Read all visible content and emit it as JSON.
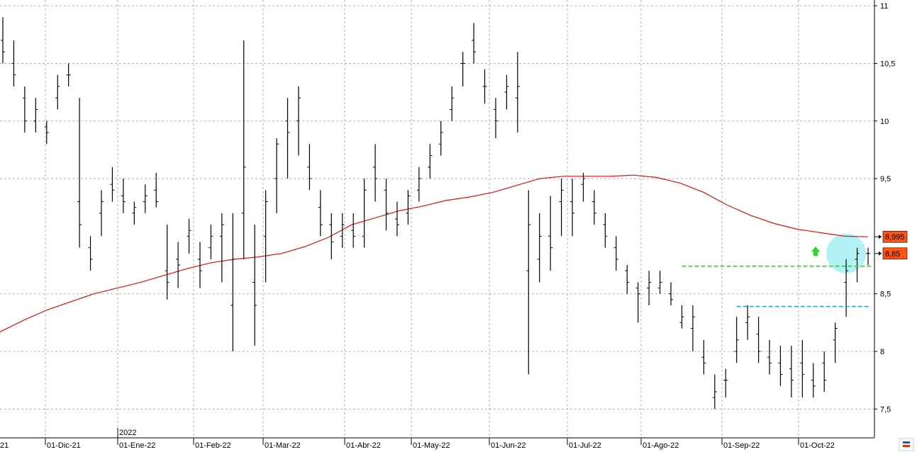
{
  "chart_data": {
    "type": "bar",
    "subtype": "ohlc",
    "grid": true,
    "ylim": [
      7.25,
      11.05
    ],
    "y_ticks": [
      7.5,
      8,
      8.5,
      9.5,
      10,
      10.5,
      11
    ],
    "y_tick_labels": [
      "7,5",
      "8",
      "8,5",
      "9,5",
      "10",
      "10,5",
      "11"
    ],
    "x_labels": [
      "21",
      "01-Dic-21",
      "01-Ene-22",
      "01-Feb-22",
      "01-Mar-22",
      "01-Abr-22",
      "01-May-22",
      "01-Jun-22",
      "01-Jul-22",
      "01-Ago-22",
      "01-Sep-22",
      "01-Oct-22"
    ],
    "year_label": "2022",
    "moving_average": {
      "color": "#dd1111",
      "values": [
        8.17,
        8.27,
        8.36,
        8.43,
        8.5,
        8.55,
        8.6,
        8.66,
        8.72,
        8.77,
        8.8,
        8.82,
        8.85,
        8.91,
        8.99,
        9.1,
        9.16,
        9.22,
        9.26,
        9.31,
        9.34,
        9.38,
        9.44,
        9.5,
        9.52,
        9.52,
        9.52,
        9.53,
        9.51,
        9.46,
        9.38,
        9.27,
        9.18,
        9.11,
        9.06,
        9.03,
        9.0,
        8.995
      ]
    },
    "price_bars": [
      [
        10.7,
        10.9,
        10.5,
        10.6
      ],
      [
        10.5,
        10.7,
        10.3,
        10.4
      ],
      [
        10.2,
        10.3,
        9.9,
        10.0
      ],
      [
        10.0,
        10.2,
        9.9,
        10.1
      ],
      [
        9.95,
        10.0,
        9.8,
        9.9
      ],
      [
        10.2,
        10.4,
        10.1,
        10.3
      ],
      [
        10.4,
        10.5,
        10.3,
        10.4
      ],
      [
        9.3,
        10.2,
        8.9,
        9.1
      ],
      [
        8.9,
        9.0,
        8.7,
        8.8
      ],
      [
        9.2,
        9.4,
        9.0,
        9.3
      ],
      [
        9.45,
        9.6,
        9.3,
        9.4
      ],
      [
        9.35,
        9.5,
        9.2,
        9.3
      ],
      [
        9.2,
        9.3,
        9.1,
        9.25
      ],
      [
        9.3,
        9.45,
        9.2,
        9.35
      ],
      [
        9.4,
        9.55,
        9.25,
        9.3
      ],
      [
        8.7,
        9.1,
        8.45,
        8.6
      ],
      [
        8.8,
        8.95,
        8.55,
        8.75
      ],
      [
        9.0,
        9.15,
        8.85,
        9.05
      ],
      [
        8.8,
        8.95,
        8.55,
        8.7
      ],
      [
        8.9,
        9.1,
        8.8,
        9.0
      ],
      [
        9.0,
        9.2,
        8.6,
        9.1
      ],
      [
        8.4,
        9.2,
        8.0,
        8.8
      ],
      [
        9.2,
        10.7,
        8.8,
        9.6
      ],
      [
        8.6,
        9.1,
        8.05,
        8.4
      ],
      [
        9.0,
        9.4,
        8.6,
        9.3
      ],
      [
        9.5,
        9.85,
        9.2,
        9.8
      ],
      [
        10.0,
        10.2,
        9.5,
        9.9
      ],
      [
        10.0,
        10.3,
        9.7,
        10.2
      ],
      [
        9.6,
        9.8,
        9.4,
        9.5
      ],
      [
        9.25,
        9.4,
        9.0,
        9.1
      ],
      [
        9.1,
        9.2,
        8.8,
        8.95
      ],
      [
        9.0,
        9.2,
        8.9,
        9.1
      ],
      [
        9.05,
        9.2,
        8.9,
        9.0
      ],
      [
        9.0,
        9.5,
        8.9,
        9.4
      ],
      [
        9.6,
        9.8,
        9.3,
        9.5
      ],
      [
        9.4,
        9.5,
        9.05,
        9.2
      ],
      [
        9.15,
        9.3,
        9.0,
        9.1
      ],
      [
        9.2,
        9.4,
        9.1,
        9.35
      ],
      [
        9.4,
        9.6,
        9.3,
        9.5
      ],
      [
        9.6,
        9.8,
        9.5,
        9.7
      ],
      [
        9.8,
        10.0,
        9.7,
        9.9
      ],
      [
        10.1,
        10.3,
        10.0,
        10.2
      ],
      [
        10.5,
        10.6,
        10.3,
        10.5
      ],
      [
        10.7,
        10.85,
        10.5,
        10.6
      ],
      [
        10.3,
        10.45,
        10.15,
        10.3
      ],
      [
        10.1,
        10.2,
        9.85,
        10.0
      ],
      [
        10.25,
        10.4,
        10.1,
        10.3
      ],
      [
        10.2,
        10.6,
        9.9,
        10.3
      ],
      [
        8.7,
        9.4,
        7.8,
        9.1
      ],
      [
        8.8,
        9.2,
        8.6,
        9.0
      ],
      [
        9.0,
        9.35,
        8.7,
        8.9
      ],
      [
        9.3,
        9.5,
        9.0,
        9.4
      ],
      [
        9.3,
        9.5,
        9.0,
        9.2
      ],
      [
        9.45,
        9.55,
        9.3,
        9.5
      ],
      [
        9.3,
        9.4,
        9.1,
        9.2
      ],
      [
        9.1,
        9.2,
        8.9,
        9.0
      ],
      [
        8.9,
        9.0,
        8.7,
        8.8
      ],
      [
        8.7,
        8.75,
        8.5,
        8.6
      ],
      [
        8.55,
        8.6,
        8.25,
        8.5
      ],
      [
        8.55,
        8.7,
        8.4,
        8.6
      ],
      [
        8.55,
        8.7,
        8.5,
        8.6
      ],
      [
        8.5,
        8.6,
        8.4,
        8.45
      ],
      [
        8.25,
        8.4,
        8.2,
        8.3
      ],
      [
        8.2,
        8.4,
        8.0,
        8.3
      ],
      [
        7.95,
        8.1,
        7.8,
        7.9
      ],
      [
        7.6,
        7.8,
        7.5,
        7.65
      ],
      [
        7.75,
        7.85,
        7.6,
        7.75
      ],
      [
        8.0,
        8.3,
        7.9,
        8.1
      ],
      [
        8.25,
        8.4,
        8.1,
        8.3
      ],
      [
        8.15,
        8.3,
        7.9,
        8.0
      ],
      [
        7.95,
        8.1,
        7.8,
        7.9
      ],
      [
        7.9,
        8.05,
        7.7,
        7.8
      ],
      [
        7.85,
        8.05,
        7.6,
        7.75
      ],
      [
        7.9,
        8.1,
        7.6,
        7.8
      ],
      [
        7.75,
        7.9,
        7.6,
        7.7
      ],
      [
        7.9,
        8.0,
        7.65,
        7.75
      ],
      [
        8.1,
        8.25,
        7.9,
        8.2
      ],
      [
        8.6,
        8.8,
        8.3,
        8.7
      ],
      [
        8.8,
        8.9,
        8.6,
        8.85
      ],
      [
        8.85,
        8.9,
        8.75,
        8.85
      ]
    ],
    "badges": [
      {
        "value": 8.995,
        "label": "8,995"
      },
      {
        "value": 8.85,
        "label": "8,85"
      }
    ],
    "support_lines": [
      {
        "value": 8.74,
        "color": "#22dd22",
        "start_bar": 62
      },
      {
        "value": 8.39,
        "color": "#22aadd",
        "start_bar": 67
      }
    ],
    "colors": {
      "bars": "#000000",
      "grid": "#b0b0b0",
      "badge": "#ff5511",
      "arrow": "#22dd22",
      "highlight": "#aaf0f4"
    }
  }
}
